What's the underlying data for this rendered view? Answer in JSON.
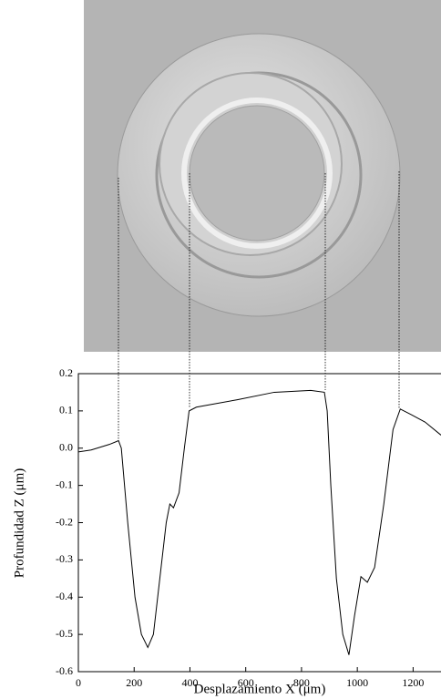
{
  "chart_data": {
    "type": "line",
    "x_label": "Desplazamiento X (μm)",
    "y_label": "Profundidad Z (μm)",
    "x": [
      0,
      46,
      111,
      144,
      154,
      177,
      203,
      226,
      249,
      269,
      292,
      315,
      328,
      341,
      361,
      380,
      397,
      423,
      570,
      702,
      833,
      882,
      892,
      905,
      925,
      948,
      970,
      990,
      1013,
      1036,
      1062,
      1095,
      1128,
      1154,
      1193,
      1243,
      1300
    ],
    "values": [
      -0.01,
      -0.005,
      0.01,
      0.02,
      0.0,
      -0.2,
      -0.4,
      -0.5,
      -0.535,
      -0.5,
      -0.35,
      -0.2,
      -0.15,
      -0.16,
      -0.12,
      0.0,
      0.1,
      0.11,
      0.13,
      0.15,
      0.155,
      0.15,
      0.1,
      -0.1,
      -0.35,
      -0.5,
      -0.555,
      -0.45,
      -0.345,
      -0.36,
      -0.32,
      -0.15,
      0.05,
      0.105,
      0.09,
      0.07,
      0.035
    ],
    "color": "#000000",
    "xlim": [
      0,
      1300
    ],
    "xticks": [
      0,
      200,
      400,
      600,
      800,
      1000,
      1200
    ],
    "ylim": [
      -0.6,
      0.2
    ],
    "yticks": [
      -0.6,
      -0.5,
      -0.4,
      -0.3,
      -0.2,
      -0.1,
      {
        "value": 0,
        "label": "0.0"
      },
      0.1,
      0.2
    ]
  }
}
